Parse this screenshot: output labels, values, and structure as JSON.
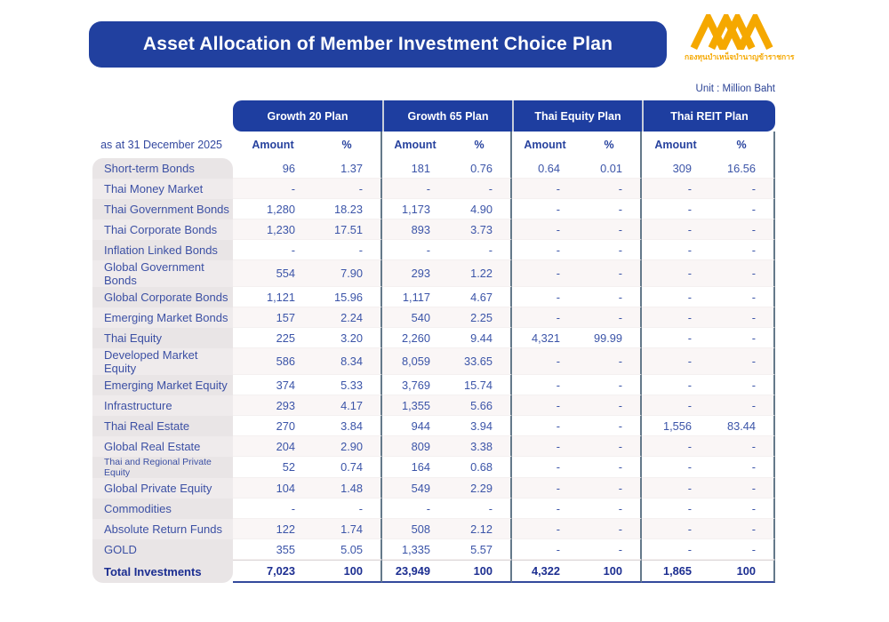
{
  "header": {
    "title": "Asset Allocation of Member Investment Choice Plan",
    "unit_label": "Unit : Million Baht",
    "logo_text": "กองทุนบำเหน็จบำนาญข้าราชการ",
    "logo_color": "#f5a800",
    "bar_color": "#21409f"
  },
  "table": {
    "as_at_label": "as at 31 December 2025",
    "plans": [
      "Growth 20 Plan",
      "Growth 65 Plan",
      "Thai Equity Plan",
      "Thai REIT Plan"
    ],
    "subheaders": [
      "Amount",
      "%"
    ],
    "rows": [
      {
        "label": "Short-term Bonds",
        "values": [
          "96",
          "1.37",
          "181",
          "0.76",
          "0.64",
          "0.01",
          "309",
          "16.56"
        ]
      },
      {
        "label": "Thai Money Market",
        "values": [
          "-",
          "-",
          "-",
          "-",
          "-",
          "-",
          "-",
          "-"
        ]
      },
      {
        "label": "Thai Government Bonds",
        "values": [
          "1,280",
          "18.23",
          "1,173",
          "4.90",
          "-",
          "-",
          "-",
          "-"
        ]
      },
      {
        "label": "Thai Corporate Bonds",
        "values": [
          "1,230",
          "17.51",
          "893",
          "3.73",
          "-",
          "-",
          "-",
          "-"
        ]
      },
      {
        "label": "Inflation Linked Bonds",
        "values": [
          "-",
          "-",
          "-",
          "-",
          "-",
          "-",
          "-",
          "-"
        ]
      },
      {
        "label": "Global Government Bonds",
        "values": [
          "554",
          "7.90",
          "293",
          "1.22",
          "-",
          "-",
          "-",
          "-"
        ]
      },
      {
        "label": "Global Corporate Bonds",
        "values": [
          "1,121",
          "15.96",
          "1,117",
          "4.67",
          "-",
          "-",
          "-",
          "-"
        ]
      },
      {
        "label": "Emerging Market Bonds",
        "values": [
          "157",
          "2.24",
          "540",
          "2.25",
          "-",
          "-",
          "-",
          "-"
        ]
      },
      {
        "label": "Thai Equity",
        "values": [
          "225",
          "3.20",
          "2,260",
          "9.44",
          "4,321",
          "99.99",
          "-",
          "-"
        ]
      },
      {
        "label": "Developed Market Equity",
        "values": [
          "586",
          "8.34",
          "8,059",
          "33.65",
          "-",
          "-",
          "-",
          "-"
        ]
      },
      {
        "label": "Emerging Market Equity",
        "values": [
          "374",
          "5.33",
          "3,769",
          "15.74",
          "-",
          "-",
          "-",
          "-"
        ]
      },
      {
        "label": "Infrastructure",
        "values": [
          "293",
          "4.17",
          "1,355",
          "5.66",
          "-",
          "-",
          "-",
          "-"
        ]
      },
      {
        "label": "Thai Real Estate",
        "values": [
          "270",
          "3.84",
          "944",
          "3.94",
          "-",
          "-",
          "1,556",
          "83.44"
        ]
      },
      {
        "label": "Global Real Estate",
        "values": [
          "204",
          "2.90",
          "809",
          "3.38",
          "-",
          "-",
          "-",
          "-"
        ]
      },
      {
        "label": "Thai and Regional Private Equity",
        "values": [
          "52",
          "0.74",
          "164",
          "0.68",
          "-",
          "-",
          "-",
          "-"
        ]
      },
      {
        "label": "Global Private Equity",
        "values": [
          "104",
          "1.48",
          "549",
          "2.29",
          "-",
          "-",
          "-",
          "-"
        ]
      },
      {
        "label": "Commodities",
        "values": [
          "-",
          "-",
          "-",
          "-",
          "-",
          "-",
          "-",
          "-"
        ]
      },
      {
        "label": "Absolute Return Funds",
        "values": [
          "122",
          "1.74",
          "508",
          "2.12",
          "-",
          "-",
          "-",
          "-"
        ]
      },
      {
        "label": "GOLD",
        "values": [
          "355",
          "5.05",
          "1,335",
          "5.57",
          "-",
          "-",
          "-",
          "-"
        ]
      }
    ],
    "total_row": {
      "label": "Total Investments",
      "values": [
        "7,023",
        "100",
        "23,949",
        "100",
        "4,322",
        "100",
        "1,865",
        "100"
      ]
    }
  }
}
